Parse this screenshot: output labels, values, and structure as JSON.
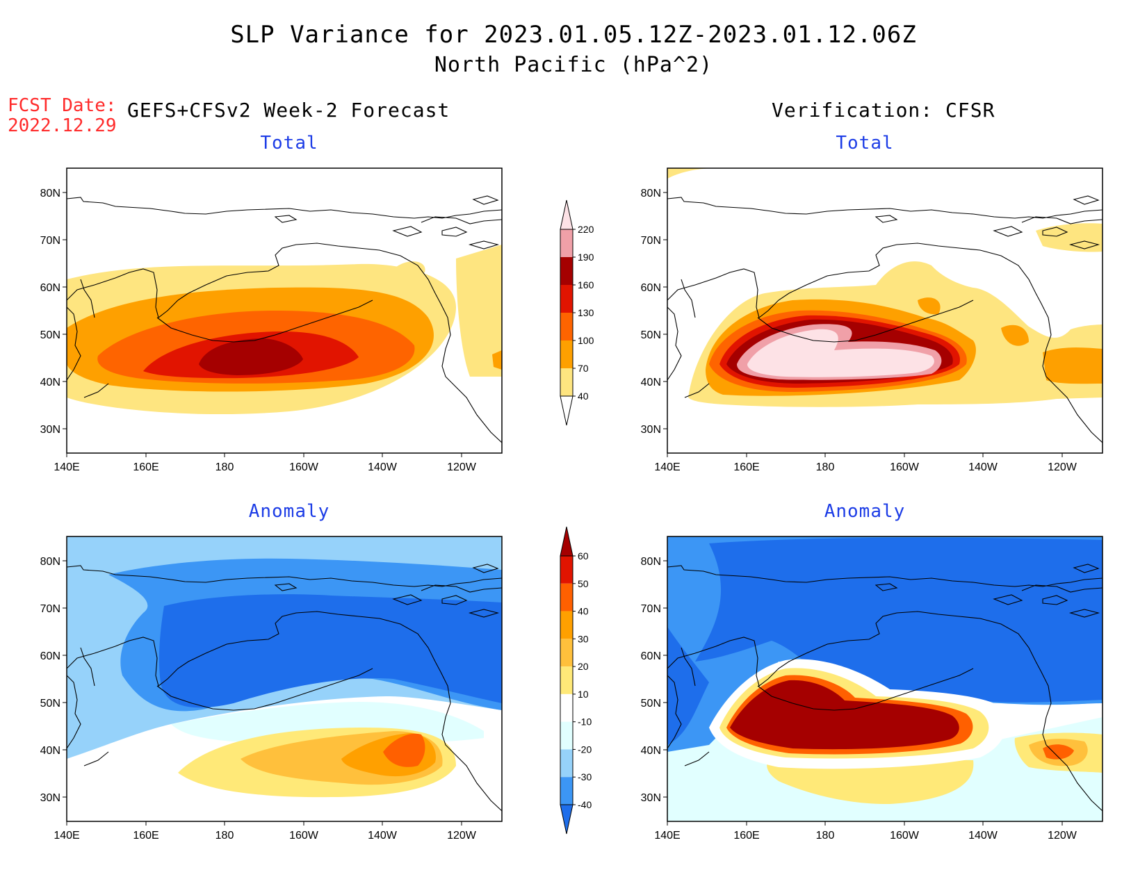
{
  "header": {
    "title_line1": "SLP Variance for 2023.01.05.12Z-2023.01.12.06Z",
    "title_line2": "North Pacific (hPa^2)",
    "fcst_date_label": "FCST Date:",
    "fcst_date_value": "2022.12.29",
    "forecast_heading": "GEFS+CFSv2 Week-2 Forecast",
    "verification_heading": "Verification: CFSR"
  },
  "axes": {
    "lat_labels": [
      "80N",
      "70N",
      "60N",
      "50N",
      "40N",
      "30N"
    ],
    "lon_labels": [
      "140E",
      "160E",
      "180",
      "160W",
      "140W",
      "120W"
    ]
  },
  "panels": [
    {
      "id": "fcst-total",
      "title": "Total",
      "scale": "total",
      "field": "fcst_total"
    },
    {
      "id": "verif-total",
      "title": "Total",
      "scale": "total",
      "field": "verif_total"
    },
    {
      "id": "fcst-anomaly",
      "title": "Anomaly",
      "scale": "anomaly",
      "field": "fcst_anom"
    },
    {
      "id": "verif-anomaly",
      "title": "Anomaly",
      "scale": "anomaly",
      "field": "verif_anom"
    }
  ],
  "colorbars": {
    "total": {
      "labels": [
        "40",
        "70",
        "100",
        "130",
        "160",
        "190",
        "220"
      ],
      "colors": [
        "#ffffff",
        "#fee580",
        "#fea000",
        "#fe6400",
        "#e11400",
        "#a50000",
        "#f0a0a8",
        "#fde2e6"
      ]
    },
    "anomaly": {
      "labels": [
        "-40",
        "-30",
        "-20",
        "-10",
        "10",
        "20",
        "30",
        "40",
        "50",
        "60"
      ],
      "colors": [
        "#1e6eeb",
        "#3c96f5",
        "#96d2fa",
        "#e1ffff",
        "#ffffff",
        "#ffe978",
        "#ffc03c",
        "#ffa000",
        "#ff6000",
        "#e11400",
        "#a50000"
      ]
    }
  }
}
